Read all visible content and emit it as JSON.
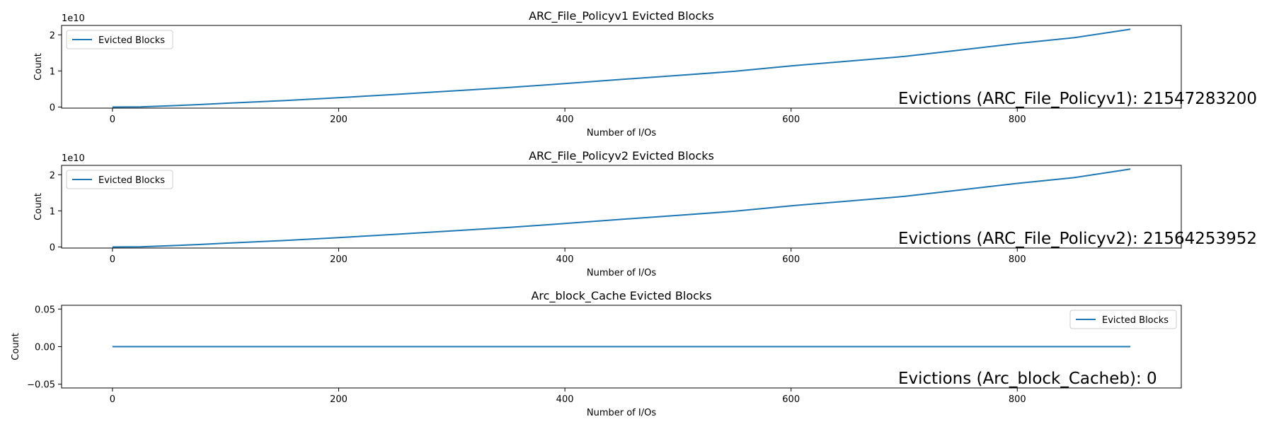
{
  "chart_data": [
    {
      "type": "line",
      "title": "ARC_File_Policyv1 Evicted Blocks",
      "xlabel": "Number of I/Os",
      "ylabel": "Count",
      "xlim": [
        -45,
        945
      ],
      "ylim": [
        -300000000.0,
        22600000000.0
      ],
      "xticks": [
        0,
        200,
        400,
        600,
        800
      ],
      "xtick_labels": [
        "0",
        "200",
        "400",
        "600",
        "800"
      ],
      "yticks": [
        0,
        10000000000.0,
        20000000000.0
      ],
      "ytick_labels": [
        "0",
        "1",
        "2"
      ],
      "offset_text": "1e10",
      "grid": false,
      "legend_position": "upper-left",
      "annotation": "Evictions (ARC_File_Policyv1): 21547283200",
      "series": [
        {
          "name": "Evicted Blocks",
          "color": "#1f77b4",
          "x": [
            0,
            25,
            50,
            75,
            100,
            150,
            200,
            250,
            300,
            350,
            400,
            450,
            500,
            550,
            600,
            650,
            700,
            750,
            800,
            850,
            900
          ],
          "y": [
            0,
            60000000.0,
            330000000.0,
            650000000.0,
            1050000000.0,
            1750000000.0,
            2600000000.0,
            3500000000.0,
            4450000000.0,
            5400000000.0,
            6500000000.0,
            7650000000.0,
            8750000000.0,
            9900000000.0,
            11400000000.0,
            12700000000.0,
            14000000000.0,
            15800000000.0,
            17600000000.0,
            19200000000.0,
            21547000000.0
          ]
        }
      ]
    },
    {
      "type": "line",
      "title": "ARC_File_Policyv2 Evicted Blocks",
      "xlabel": "Number of I/Os",
      "ylabel": "Count",
      "xlim": [
        -45,
        945
      ],
      "ylim": [
        -300000000.0,
        22600000000.0
      ],
      "xticks": [
        0,
        200,
        400,
        600,
        800
      ],
      "xtick_labels": [
        "0",
        "200",
        "400",
        "600",
        "800"
      ],
      "yticks": [
        0,
        10000000000.0,
        20000000000.0
      ],
      "ytick_labels": [
        "0",
        "1",
        "2"
      ],
      "offset_text": "1e10",
      "grid": false,
      "legend_position": "upper-left",
      "annotation": "Evictions (ARC_File_Policyv2): 21564253952",
      "series": [
        {
          "name": "Evicted Blocks",
          "color": "#1f77b4",
          "x": [
            0,
            25,
            50,
            75,
            100,
            150,
            200,
            250,
            300,
            350,
            400,
            450,
            500,
            550,
            600,
            650,
            700,
            750,
            800,
            850,
            900
          ],
          "y": [
            0,
            60000000.0,
            330000000.0,
            650000000.0,
            1050000000.0,
            1750000000.0,
            2600000000.0,
            3500000000.0,
            4450000000.0,
            5400000000.0,
            6500000000.0,
            7650000000.0,
            8750000000.0,
            9900000000.0,
            11400000000.0,
            12700000000.0,
            14000000000.0,
            15800000000.0,
            17600000000.0,
            19200000000.0,
            21564000000.0
          ]
        }
      ]
    },
    {
      "type": "line",
      "title": "Arc_block_Cache Evicted Blocks",
      "xlabel": "Number of I/Os",
      "ylabel": "Count",
      "xlim": [
        -45,
        945
      ],
      "ylim": [
        -0.055,
        0.055
      ],
      "xticks": [
        0,
        200,
        400,
        600,
        800
      ],
      "xtick_labels": [
        "0",
        "200",
        "400",
        "600",
        "800"
      ],
      "yticks": [
        -0.05,
        0,
        0.05
      ],
      "ytick_labels": [
        "−0.05",
        "0.00",
        "0.05"
      ],
      "offset_text": "",
      "grid": false,
      "legend_position": "upper-right",
      "annotation": "Evictions (Arc_block_Cacheb): 0",
      "series": [
        {
          "name": "Evicted Blocks",
          "color": "#1f77b4",
          "x": [
            0,
            900
          ],
          "y": [
            0,
            0
          ]
        }
      ]
    }
  ]
}
